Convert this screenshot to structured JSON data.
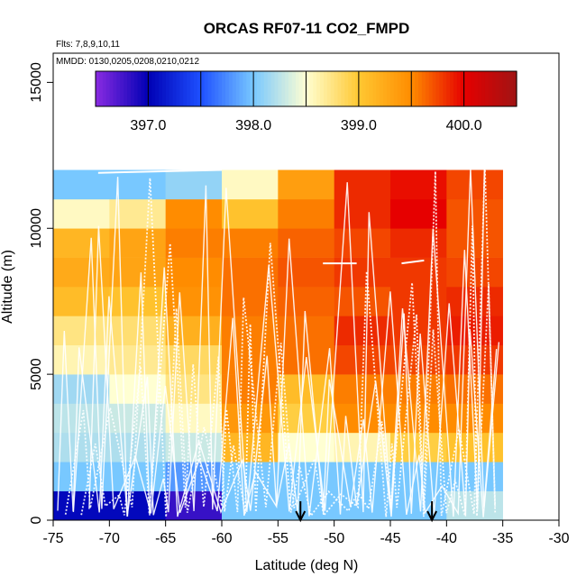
{
  "chart_data": {
    "type": "heatmap",
    "title": "ORCAS RF07-11 CO2_FMPD",
    "flights_label": "Flts: 7,8,9,10,11",
    "dates_label": "MMDD: 0130,0205,0208,0210,0212",
    "xlabel": "Latitude (deg N)",
    "ylabel": "Altitude (m)",
    "xlim": [
      -75,
      -30
    ],
    "ylim": [
      0,
      16000
    ],
    "x_ticks": [
      -75,
      -70,
      -65,
      -60,
      -55,
      -50,
      -45,
      -40,
      -35,
      -30
    ],
    "x_tick_labels": [
      "-75",
      "-70",
      "-65",
      "-60",
      "-55",
      "-50",
      "-45",
      "-40",
      "-35",
      "-30"
    ],
    "y_ticks": [
      0,
      5000,
      10000,
      15000
    ],
    "y_tick_labels": [
      "0",
      "5000",
      "10000",
      "15000"
    ],
    "colorbar": {
      "range": [
        396.5,
        400.5
      ],
      "ticks": [
        397.0,
        398.0,
        399.0,
        400.0
      ],
      "tick_labels": [
        "397.0",
        "398.0",
        "399.0",
        "400.0"
      ],
      "colors": [
        "#8a2be2",
        "#0000b4",
        "#1e50ff",
        "#78c8ff",
        "#ffffd2",
        "#ffc832",
        "#ff8c00",
        "#e60000",
        "#a01414"
      ]
    },
    "lat_edges": [
      -75,
      -70,
      -65,
      -60,
      -55,
      -50,
      -45,
      -40,
      -35
    ],
    "alt_edges": [
      0,
      1000,
      2000,
      3000,
      4000,
      5000,
      6000,
      7000,
      8000,
      9000,
      10000,
      11000,
      12000
    ],
    "values_bottom_to_top": [
      [
        397.05,
        397.05,
        396.8,
        398.0,
        398.0,
        398.0,
        398.0,
        398.25
      ],
      [
        398.0,
        398.0,
        397.8,
        398.0,
        398.0,
        398.0,
        398.0,
        398.0
      ],
      [
        398.2,
        398.2,
        398.3,
        399.15,
        398.5,
        398.6,
        398.95,
        399.05
      ],
      [
        398.25,
        398.3,
        398.55,
        399.4,
        398.95,
        399.5,
        399.5,
        399.5
      ],
      [
        398.15,
        398.5,
        398.75,
        399.55,
        399.1,
        399.55,
        399.55,
        399.6
      ],
      [
        398.6,
        398.7,
        398.85,
        399.55,
        399.6,
        399.75,
        399.75,
        399.8
      ],
      [
        398.75,
        398.8,
        399.2,
        399.55,
        399.6,
        399.85,
        399.8,
        399.9
      ],
      [
        399.1,
        399.05,
        399.45,
        399.6,
        399.65,
        399.7,
        399.8,
        399.85
      ],
      [
        399.25,
        399.3,
        399.5,
        399.6,
        399.7,
        399.8,
        399.8,
        399.75
      ],
      [
        399.15,
        399.3,
        399.55,
        399.55,
        399.65,
        399.75,
        399.85,
        399.7
      ],
      [
        398.55,
        398.7,
        399.5,
        399.05,
        399.55,
        399.85,
        400.0,
        399.7
      ],
      [
        398.0,
        398.0,
        398.1,
        398.55,
        399.35,
        399.85,
        399.95,
        399.75
      ]
    ],
    "markers": [
      {
        "lat": -53,
        "label": "arrow"
      },
      {
        "lat": -41.3,
        "label": "arrow"
      }
    ]
  }
}
